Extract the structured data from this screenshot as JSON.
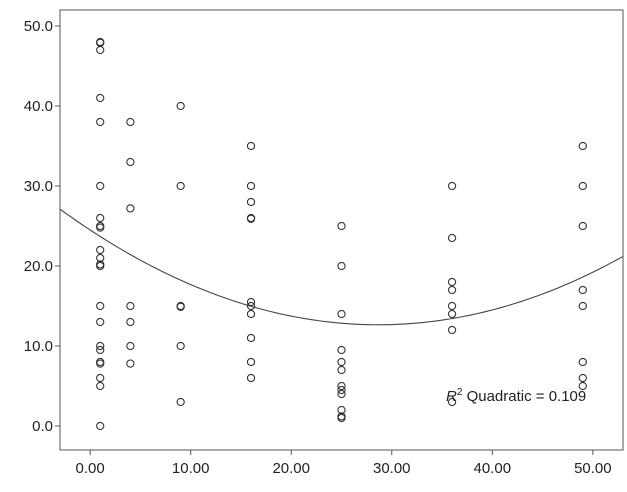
{
  "chart_data": {
    "type": "scatter",
    "title": "",
    "xlabel": "",
    "ylabel": "",
    "xlim": [
      -3,
      53
    ],
    "ylim": [
      -3,
      52
    ],
    "grid": false,
    "x_ticks": [
      0,
      10,
      20,
      30,
      40,
      50
    ],
    "x_tick_labels": [
      "0.00",
      "10.00",
      "20.00",
      "30.00",
      "40.00",
      "50.00"
    ],
    "y_ticks": [
      0,
      10,
      20,
      30,
      40,
      50
    ],
    "y_tick_labels": [
      "0.0",
      "10.0",
      "20.0",
      "30.0",
      "40.0",
      "50.0"
    ],
    "marker": "open-circle",
    "point_color": "#333333",
    "fit_color": "#444444",
    "points": [
      {
        "x": 1,
        "y": 48
      },
      {
        "x": 1,
        "y": 47.9
      },
      {
        "x": 1,
        "y": 47
      },
      {
        "x": 1,
        "y": 41
      },
      {
        "x": 1,
        "y": 38
      },
      {
        "x": 1,
        "y": 30
      },
      {
        "x": 1,
        "y": 26
      },
      {
        "x": 1,
        "y": 25
      },
      {
        "x": 1,
        "y": 24.8
      },
      {
        "x": 1,
        "y": 22
      },
      {
        "x": 1,
        "y": 21
      },
      {
        "x": 1,
        "y": 20.2
      },
      {
        "x": 1,
        "y": 20
      },
      {
        "x": 1,
        "y": 15
      },
      {
        "x": 1,
        "y": 13
      },
      {
        "x": 1,
        "y": 10
      },
      {
        "x": 1,
        "y": 9.5
      },
      {
        "x": 1,
        "y": 8
      },
      {
        "x": 1,
        "y": 7.8
      },
      {
        "x": 1,
        "y": 6
      },
      {
        "x": 1,
        "y": 5
      },
      {
        "x": 1,
        "y": 0
      },
      {
        "x": 4,
        "y": 38
      },
      {
        "x": 4,
        "y": 33
      },
      {
        "x": 4,
        "y": 27.2
      },
      {
        "x": 4,
        "y": 15
      },
      {
        "x": 4,
        "y": 13
      },
      {
        "x": 4,
        "y": 10
      },
      {
        "x": 4,
        "y": 7.8
      },
      {
        "x": 9,
        "y": 40
      },
      {
        "x": 9,
        "y": 30
      },
      {
        "x": 9,
        "y": 15
      },
      {
        "x": 9,
        "y": 14.9
      },
      {
        "x": 9,
        "y": 10
      },
      {
        "x": 9,
        "y": 3
      },
      {
        "x": 16,
        "y": 35
      },
      {
        "x": 16,
        "y": 30
      },
      {
        "x": 16,
        "y": 28
      },
      {
        "x": 16,
        "y": 26
      },
      {
        "x": 16,
        "y": 25.9
      },
      {
        "x": 16,
        "y": 15.5
      },
      {
        "x": 16,
        "y": 15
      },
      {
        "x": 16,
        "y": 14
      },
      {
        "x": 16,
        "y": 11
      },
      {
        "x": 16,
        "y": 8
      },
      {
        "x": 16,
        "y": 6
      },
      {
        "x": 25,
        "y": 25
      },
      {
        "x": 25,
        "y": 20
      },
      {
        "x": 25,
        "y": 14
      },
      {
        "x": 25,
        "y": 9.5
      },
      {
        "x": 25,
        "y": 8
      },
      {
        "x": 25,
        "y": 7
      },
      {
        "x": 25,
        "y": 5
      },
      {
        "x": 25,
        "y": 4.5
      },
      {
        "x": 25,
        "y": 4
      },
      {
        "x": 25,
        "y": 2
      },
      {
        "x": 25,
        "y": 1.2
      },
      {
        "x": 25,
        "y": 1
      },
      {
        "x": 36,
        "y": 30
      },
      {
        "x": 36,
        "y": 23.5
      },
      {
        "x": 36,
        "y": 18
      },
      {
        "x": 36,
        "y": 17
      },
      {
        "x": 36,
        "y": 15
      },
      {
        "x": 36,
        "y": 14
      },
      {
        "x": 36,
        "y": 12
      },
      {
        "x": 36,
        "y": 3
      },
      {
        "x": 49,
        "y": 35
      },
      {
        "x": 49,
        "y": 30
      },
      {
        "x": 49,
        "y": 25
      },
      {
        "x": 49,
        "y": 17
      },
      {
        "x": 49,
        "y": 15
      },
      {
        "x": 49,
        "y": 8
      },
      {
        "x": 49,
        "y": 6
      },
      {
        "x": 49,
        "y": 5
      }
    ],
    "fit": {
      "model": "quadratic",
      "coefficients": {
        "a": 0.01442,
        "b": -0.8266,
        "c": 24.5
      },
      "x_range": [
        -3,
        53
      ]
    },
    "annotation": {
      "prefix": "R",
      "superscript": "2",
      "text": " Quadratic = 0.109"
    }
  }
}
